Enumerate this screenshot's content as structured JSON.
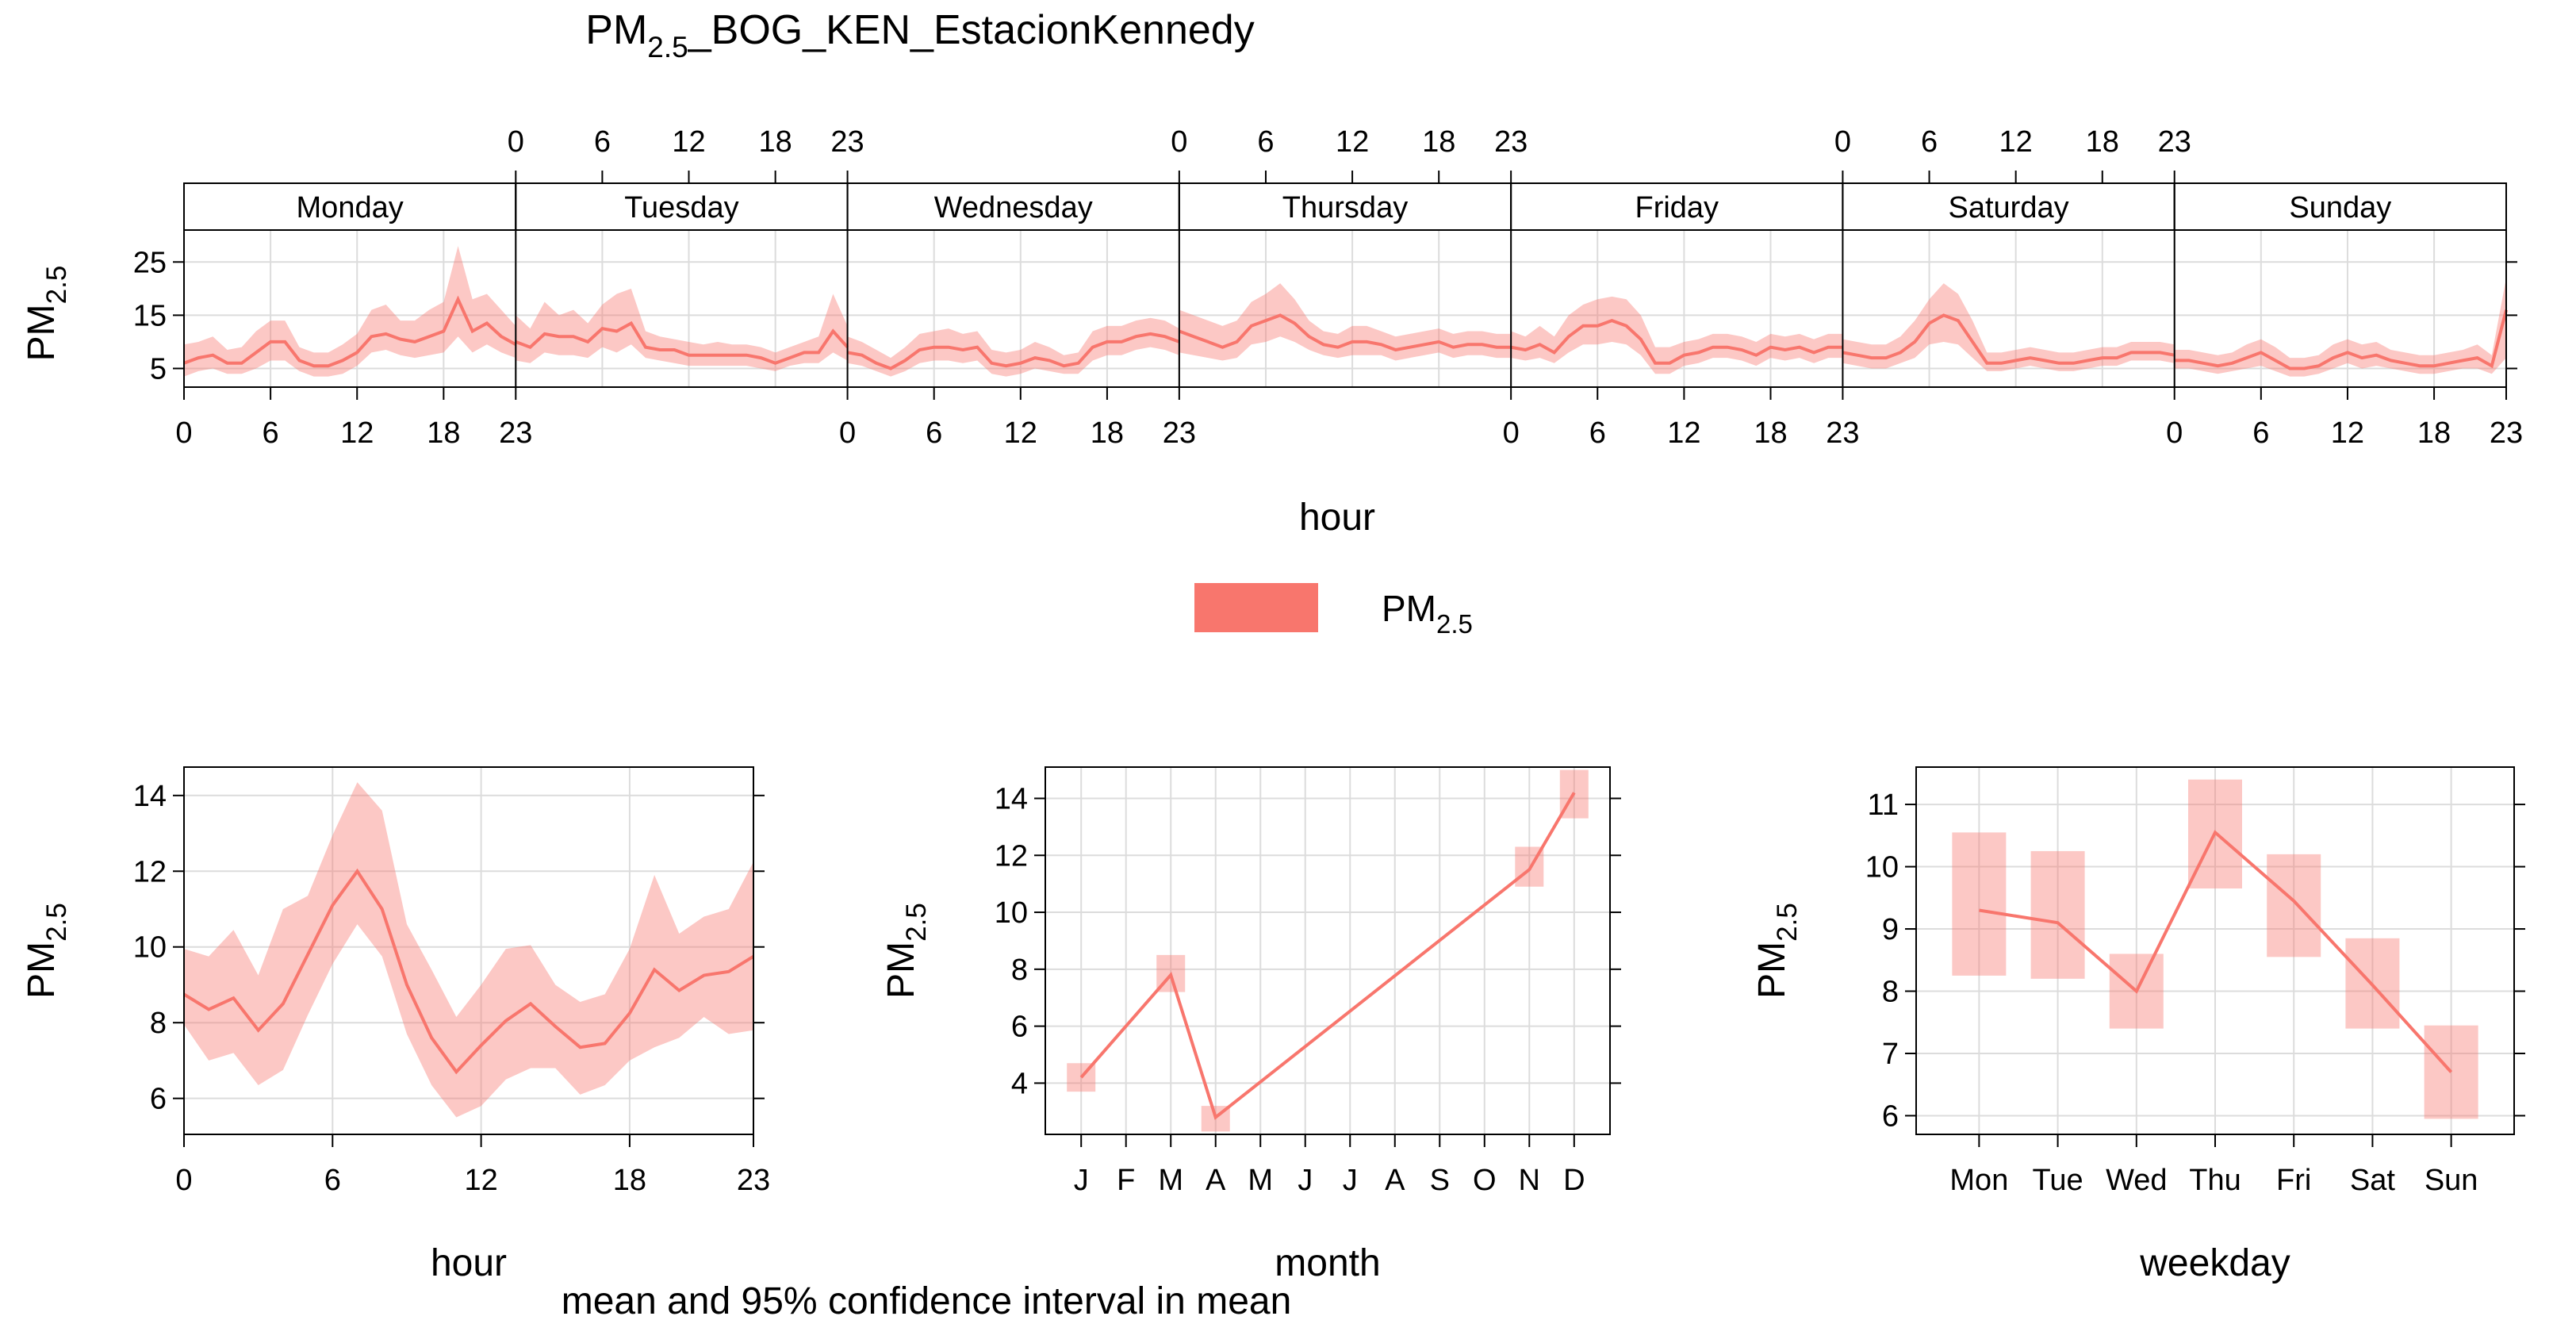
{
  "title": {
    "base": "PM",
    "sub": "2.5",
    "rest": "_BOG_KEN_EstacionKennedy"
  },
  "caption": "mean and 95% confidence interval in mean",
  "pollutant": {
    "base": "PM",
    "sub": "2.5"
  },
  "colors": {
    "line": "#F8766D",
    "band": "#F8766D",
    "band_opacity": 0.4,
    "grid": "#DCDCDC",
    "axis": "#000000"
  },
  "legend": {
    "position": "center",
    "label_base": "PM",
    "label_sub": "2.5"
  },
  "chart_data": [
    {
      "id": "hour_weekday",
      "type": "line",
      "panels": [
        "Monday",
        "Tuesday",
        "Wednesday",
        "Thursday",
        "Friday",
        "Saturday",
        "Sunday"
      ],
      "xlabel": "hour",
      "ylabel_base": "PM",
      "ylabel_sub": "2.5",
      "x": [
        0,
        1,
        2,
        3,
        4,
        5,
        6,
        7,
        8,
        9,
        10,
        11,
        12,
        13,
        14,
        15,
        16,
        17,
        18,
        19,
        20,
        21,
        22,
        23
      ],
      "x_ticks": [
        0,
        6,
        12,
        18,
        23
      ],
      "xlim": [
        0,
        23
      ],
      "y_ticks": [
        5,
        15,
        25
      ],
      "ylim": [
        1.5,
        31
      ],
      "grid": true,
      "series": [
        {
          "panel": "Monday",
          "mean": [
            6,
            7,
            7.5,
            6,
            6,
            8,
            10,
            10,
            6.5,
            5.5,
            5.5,
            6.5,
            8,
            11,
            11.5,
            10.5,
            10,
            11,
            12,
            18,
            12,
            13.5,
            11,
            9.5
          ],
          "lower": [
            3.5,
            4.5,
            5,
            4,
            4,
            5,
            6.5,
            6.5,
            4.5,
            3.5,
            3.5,
            4,
            5.5,
            8,
            8.5,
            7.5,
            7,
            7.5,
            8,
            11,
            8,
            9.5,
            8,
            7
          ],
          "upper": [
            9.5,
            10,
            11,
            8.5,
            9,
            12,
            14,
            14,
            9,
            8,
            8,
            9.5,
            11.5,
            16,
            17,
            14,
            14,
            16,
            17.5,
            28,
            18,
            19,
            16,
            13
          ]
        },
        {
          "panel": "Tuesday",
          "mean": [
            10,
            9,
            11.5,
            11,
            11,
            10,
            12.5,
            12,
            13.5,
            9,
            8.5,
            8.5,
            7.5,
            7.5,
            7.5,
            7.5,
            7.5,
            7,
            6,
            7,
            8,
            8,
            12,
            9
          ],
          "lower": [
            6.5,
            6,
            8,
            7.5,
            7.5,
            7,
            9,
            8,
            9.5,
            7,
            6.5,
            6,
            5.5,
            5.5,
            5.5,
            5.5,
            5.5,
            5,
            4.5,
            5.5,
            6,
            6,
            8,
            6.5
          ],
          "upper": [
            15,
            12.5,
            17.5,
            15,
            16,
            13.5,
            17,
            19,
            20,
            12,
            11,
            10.5,
            10,
            9.5,
            10,
            9.5,
            9.5,
            9,
            8,
            9,
            10,
            11,
            19,
            13
          ]
        },
        {
          "panel": "Wednesday",
          "mean": [
            8,
            7.5,
            6,
            5,
            6.5,
            8.5,
            9,
            9,
            8.5,
            9,
            6,
            5.5,
            6,
            7,
            6.5,
            5.5,
            6,
            9,
            10,
            10,
            11,
            11.5,
            11,
            10
          ],
          "lower": [
            6,
            5.5,
            4.5,
            3.5,
            4.5,
            6,
            6.5,
            6.5,
            6,
            6.5,
            4,
            3.5,
            4,
            5,
            4.5,
            4,
            4,
            6.5,
            7.5,
            7.5,
            8.5,
            9,
            8.5,
            7.5
          ],
          "upper": [
            11,
            10,
            8.5,
            7,
            9,
            11.5,
            12,
            12.5,
            11.5,
            12,
            8.5,
            8,
            8.5,
            10,
            9,
            7.5,
            8,
            12,
            13,
            13,
            14,
            14.5,
            14,
            12.5
          ]
        },
        {
          "panel": "Thursday",
          "mean": [
            12,
            11,
            10,
            9,
            10,
            13,
            14,
            15,
            13.5,
            11,
            9.5,
            9,
            10,
            10,
            9.5,
            8.5,
            9,
            9.5,
            10,
            9,
            9.5,
            9.5,
            9,
            9
          ],
          "lower": [
            8,
            7.5,
            7,
            6.5,
            7,
            9.5,
            10,
            11,
            10,
            8.5,
            7.5,
            7,
            7.5,
            7.5,
            7.5,
            6.5,
            7,
            7.5,
            8,
            7,
            7.5,
            7.5,
            7,
            7
          ],
          "upper": [
            16,
            15,
            14,
            13,
            14,
            17.5,
            19,
            21,
            18,
            14,
            12,
            11.5,
            13,
            13,
            12,
            11,
            11.5,
            12,
            12.5,
            11.5,
            12,
            12,
            11.5,
            11.5
          ]
        },
        {
          "panel": "Friday",
          "mean": [
            9,
            8.5,
            9.5,
            8,
            11,
            13,
            13,
            14,
            13,
            10.5,
            6,
            6,
            7.5,
            8,
            9,
            9,
            8.5,
            7.5,
            9,
            8.5,
            9,
            8,
            9,
            9
          ],
          "lower": [
            7,
            6.5,
            7,
            6,
            8,
            9.5,
            9.5,
            10,
            9.5,
            7.5,
            4,
            4,
            5.5,
            6,
            7,
            7,
            6.5,
            5.5,
            7,
            6.5,
            7,
            6,
            7,
            7
          ],
          "upper": [
            12,
            11,
            13,
            11,
            15,
            17,
            18,
            18.5,
            18,
            15,
            9,
            9,
            10,
            10.5,
            11.5,
            11.5,
            11,
            10,
            11.5,
            11,
            11.5,
            10.5,
            11.5,
            11.5
          ]
        },
        {
          "panel": "Saturday",
          "mean": [
            8,
            7.5,
            7,
            7,
            8,
            10,
            13.5,
            15,
            14,
            10,
            6,
            6,
            6.5,
            7,
            6.5,
            6,
            6,
            6.5,
            7,
            7,
            8,
            8,
            8,
            7.5
          ],
          "lower": [
            6,
            5.5,
            5,
            5,
            6,
            7,
            9.5,
            10,
            9.5,
            7,
            4.5,
            4.5,
            5,
            5.5,
            5,
            4.5,
            4.5,
            5,
            5.5,
            5.5,
            6.5,
            6.5,
            6.5,
            6
          ],
          "upper": [
            10.5,
            10,
            9.5,
            9.5,
            11,
            14,
            18,
            21,
            19,
            14,
            8,
            8,
            8.5,
            9,
            8.5,
            8,
            8,
            8.5,
            9,
            9,
            10,
            10,
            10,
            9.5
          ]
        },
        {
          "panel": "Sunday",
          "mean": [
            6.5,
            6.5,
            6,
            5.5,
            6,
            7,
            8,
            6.5,
            5,
            5,
            5.5,
            7,
            8,
            7,
            7.5,
            6.5,
            6,
            5.5,
            5.5,
            6,
            6.5,
            7,
            5.5,
            16
          ],
          "lower": [
            5,
            5,
            4.5,
            4,
            4.5,
            5,
            5.5,
            4.5,
            3.5,
            3.5,
            4,
            5,
            6,
            5,
            5.5,
            5,
            4.5,
            4,
            4,
            4.5,
            5,
            5,
            4,
            7
          ],
          "upper": [
            8.5,
            8.5,
            8,
            7.5,
            8,
            9.5,
            10.5,
            9,
            7,
            7,
            7.5,
            9.5,
            10.5,
            9.5,
            10,
            8.5,
            8,
            7.5,
            7.5,
            8,
            8.5,
            9.5,
            7.5,
            22
          ]
        }
      ]
    },
    {
      "id": "hour",
      "type": "line",
      "xlabel": "hour",
      "ylabel_base": "PM",
      "ylabel_sub": "2.5",
      "x": [
        0,
        1,
        2,
        3,
        4,
        5,
        6,
        7,
        8,
        9,
        10,
        11,
        12,
        13,
        14,
        15,
        16,
        17,
        18,
        19,
        20,
        21,
        22,
        23
      ],
      "x_ticks": [
        0,
        6,
        12,
        18,
        23
      ],
      "xlim": [
        0,
        23
      ],
      "y_ticks": [
        6,
        8,
        10,
        12,
        14
      ],
      "ylim": [
        5.05,
        14.75
      ],
      "grid": true,
      "series": [
        {
          "mean": [
            8.75,
            8.35,
            8.65,
            7.8,
            8.5,
            9.8,
            11.1,
            12.0,
            11.0,
            9.0,
            7.6,
            6.7,
            7.4,
            8.05,
            8.5,
            7.9,
            7.35,
            7.45,
            8.25,
            9.4,
            8.85,
            9.25,
            9.35,
            9.75
          ],
          "lower": [
            7.95,
            7.0,
            7.2,
            6.35,
            6.75,
            8.2,
            9.55,
            10.6,
            9.75,
            7.7,
            6.35,
            5.5,
            5.8,
            6.5,
            6.8,
            6.8,
            6.1,
            6.35,
            7.0,
            7.35,
            7.6,
            8.15,
            7.7,
            7.8
          ],
          "upper": [
            9.95,
            9.75,
            10.45,
            9.25,
            11.0,
            11.35,
            12.95,
            14.35,
            13.6,
            10.6,
            9.4,
            8.15,
            9.0,
            9.95,
            10.05,
            9.0,
            8.55,
            8.75,
            9.95,
            11.9,
            10.35,
            10.8,
            11.0,
            12.25
          ]
        }
      ]
    },
    {
      "id": "month",
      "type": "line",
      "xlabel": "month",
      "ylabel_base": "PM",
      "ylabel_sub": "2.5",
      "categories": [
        "J",
        "F",
        "M",
        "A",
        "M",
        "J",
        "J",
        "A",
        "S",
        "O",
        "N",
        "D"
      ],
      "ylim": [
        2.2,
        15.1
      ],
      "y_ticks": [
        4,
        6,
        8,
        10,
        12,
        14
      ],
      "grid": true,
      "series": [
        {
          "indices": [
            0,
            2,
            3,
            10,
            11
          ],
          "mean": [
            4.2,
            7.8,
            2.8,
            11.5,
            14.2
          ],
          "lower": [
            3.7,
            7.2,
            2.3,
            10.9,
            13.3
          ],
          "upper": [
            4.7,
            8.5,
            3.2,
            12.3,
            15.0
          ]
        }
      ]
    },
    {
      "id": "weekday",
      "type": "line",
      "xlabel": "weekday",
      "ylabel_base": "PM",
      "ylabel_sub": "2.5",
      "categories": [
        "Mon",
        "Tue",
        "Wed",
        "Thu",
        "Fri",
        "Sat",
        "Sun"
      ],
      "ylim": [
        5.7,
        11.6
      ],
      "y_ticks": [
        6,
        7,
        8,
        9,
        10,
        11
      ],
      "grid": true,
      "series": [
        {
          "mean": [
            9.3,
            9.1,
            8.0,
            10.55,
            9.45,
            8.1,
            6.7
          ],
          "lower": [
            8.25,
            8.2,
            7.4,
            9.65,
            8.55,
            7.4,
            5.95
          ],
          "upper": [
            10.55,
            10.25,
            8.6,
            11.4,
            10.2,
            8.85,
            7.45
          ]
        }
      ]
    }
  ]
}
